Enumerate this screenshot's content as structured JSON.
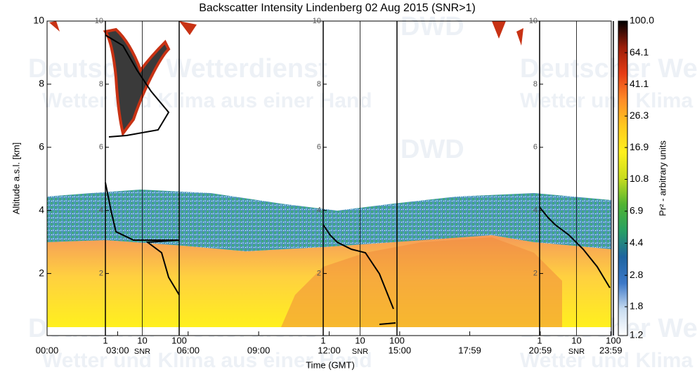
{
  "chart_data": {
    "type": "heatmap",
    "title": "Backscatter Intensity Lindenberg 02 Aug 2015 (SNR>1)",
    "xlabel": "Time (GMT)",
    "ylabel": "Altitude a.s.l. [km]",
    "xlim": [
      0,
      24
    ],
    "xticks": [
      {
        "value": 0,
        "label": "00:00"
      },
      {
        "value": 3,
        "label": "03:00"
      },
      {
        "value": 6,
        "label": "06:00"
      },
      {
        "value": 9,
        "label": "09:00"
      },
      {
        "value": 12,
        "label": "12:00"
      },
      {
        "value": 15,
        "label": "15:00"
      },
      {
        "value": 17.98,
        "label": "17:59"
      },
      {
        "value": 20.98,
        "label": "20:59"
      },
      {
        "value": 23.98,
        "label": "23:59"
      }
    ],
    "ylim": [
      0.3,
      10
    ],
    "yticks": [
      2,
      4,
      6,
      8,
      10
    ],
    "colorbar": {
      "label": "Pr² - arbitrary units",
      "log": true,
      "lim": [
        1.2,
        100
      ],
      "ticks": [
        {
          "value": 100,
          "label": "100.0"
        },
        64.1,
        41.1,
        26.3,
        16.9,
        10.8,
        6.9,
        4.4,
        2.8,
        1.8,
        1.2
      ],
      "colors": [
        "#ffffff",
        "#c8dcf0",
        "#3c78c8",
        "#1e64a0",
        "#28a064",
        "#50b432",
        "#c8dc1e",
        "#fff01e",
        "#ffc81e",
        "#ff8c28",
        "#e63c14",
        "#9b1e0a",
        "#000000"
      ]
    },
    "snr_profile": {
      "xlabel": "SNR",
      "xticks": [
        1,
        10,
        100
      ],
      "xlim": [
        1,
        100
      ]
    },
    "watermark": {
      "name": "Deutscher Wetterdienst",
      "slogan": "Wetter und Klima aus einer Hand",
      "logo": "DWD"
    }
  }
}
